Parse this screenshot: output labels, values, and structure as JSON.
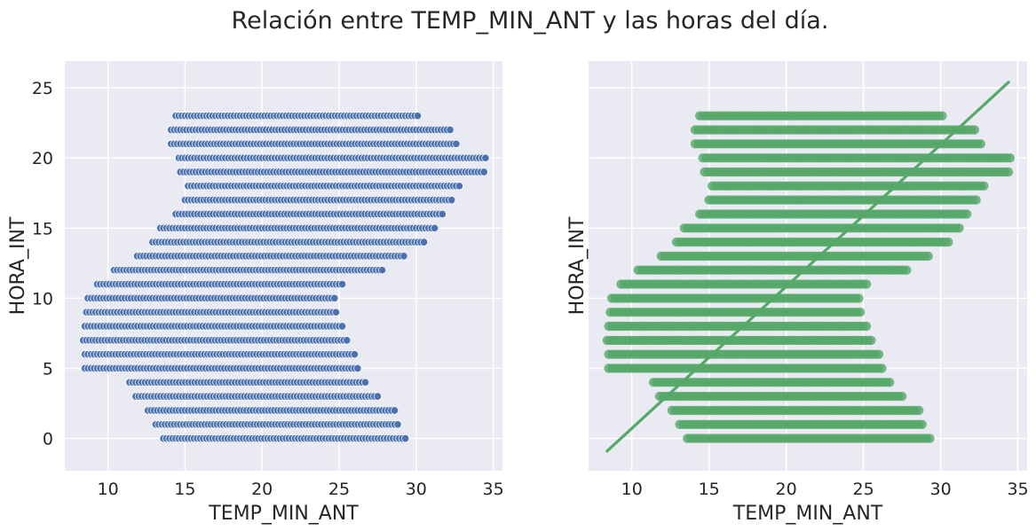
{
  "figure": {
    "title": "Relación entre TEMP_MIN_ANT y las horas del día."
  },
  "colors": {
    "panel_background": "#eaeaf2",
    "grid": "#ffffff",
    "scatter_points": "#4c72b0",
    "regplot_points": "#55a868",
    "regression_line": "#55a868"
  },
  "chart_data": [
    {
      "type": "scatter",
      "title": "",
      "xlabel": "TEMP_MIN_ANT",
      "ylabel": "HORA_INT",
      "xlim": [
        7.2,
        35.6
      ],
      "ylim": [
        -2.3,
        26.9
      ],
      "xticks": [
        10,
        15,
        20,
        25,
        30,
        35
      ],
      "yticks": [
        0,
        5,
        10,
        15,
        20,
        25
      ],
      "grid": true,
      "marker": "circle with white edge",
      "y_values": "integer hours 0-23",
      "series": [
        {
          "hour_ranges": [
            {
              "hora": 0,
              "x_min": 13.6,
              "x_max": 29.3
            },
            {
              "hora": 1,
              "x_min": 13.1,
              "x_max": 28.8
            },
            {
              "hora": 2,
              "x_min": 12.6,
              "x_max": 28.6
            },
            {
              "hora": 3,
              "x_min": 11.8,
              "x_max": 27.5
            },
            {
              "hora": 4,
              "x_min": 11.4,
              "x_max": 26.7
            },
            {
              "hora": 5,
              "x_min": 8.5,
              "x_max": 26.2
            },
            {
              "hora": 6,
              "x_min": 8.5,
              "x_max": 26.0
            },
            {
              "hora": 7,
              "x_min": 8.4,
              "x_max": 25.5
            },
            {
              "hora": 8,
              "x_min": 8.5,
              "x_max": 25.2
            },
            {
              "hora": 9,
              "x_min": 8.6,
              "x_max": 24.8
            },
            {
              "hora": 10,
              "x_min": 8.7,
              "x_max": 24.7
            },
            {
              "hora": 11,
              "x_min": 9.3,
              "x_max": 25.2
            },
            {
              "hora": 12,
              "x_min": 10.4,
              "x_max": 27.8
            },
            {
              "hora": 13,
              "x_min": 11.9,
              "x_max": 29.2
            },
            {
              "hora": 14,
              "x_min": 12.9,
              "x_max": 30.5
            },
            {
              "hora": 15,
              "x_min": 13.4,
              "x_max": 31.2
            },
            {
              "hora": 16,
              "x_min": 14.4,
              "x_max": 31.7
            },
            {
              "hora": 17,
              "x_min": 15.0,
              "x_max": 32.3
            },
            {
              "hora": 18,
              "x_min": 15.2,
              "x_max": 32.8
            },
            {
              "hora": 19,
              "x_min": 14.7,
              "x_max": 34.4
            },
            {
              "hora": 20,
              "x_min": 14.6,
              "x_max": 34.5
            },
            {
              "hora": 21,
              "x_min": 14.1,
              "x_max": 32.6
            },
            {
              "hora": 22,
              "x_min": 14.1,
              "x_max": 32.2
            },
            {
              "hora": 23,
              "x_min": 14.4,
              "x_max": 30.1
            }
          ]
        }
      ]
    },
    {
      "type": "scatter",
      "subtype": "regplot",
      "title": "",
      "xlabel": "TEMP_MIN_ANT",
      "ylabel": "HORA_INT",
      "xlim": [
        7.2,
        35.6
      ],
      "ylim": [
        -2.3,
        26.9
      ],
      "xticks": [
        10,
        15,
        20,
        25,
        30,
        35
      ],
      "yticks": [
        0,
        5,
        10,
        15,
        20,
        25
      ],
      "shared_y": true,
      "grid": true,
      "marker": "circle, semi-transparent",
      "regression_line": {
        "x": [
          8.4,
          34.4
        ],
        "y": [
          -0.9,
          25.4
        ]
      },
      "same_points_as": "left panel"
    }
  ]
}
